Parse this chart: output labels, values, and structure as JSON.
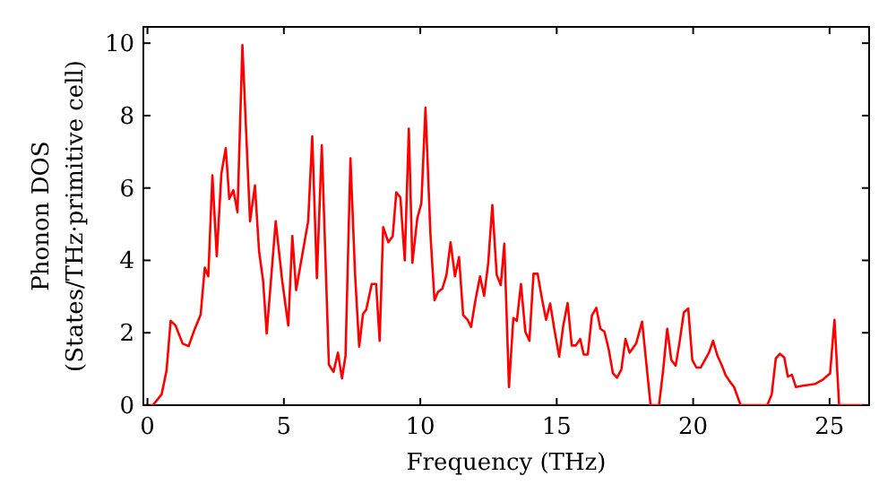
{
  "chart_data": {
    "type": "line",
    "xlabel": "Frequency (THz)",
    "ylabel": "Phonon DOS\n(States/THz·primitive cell)",
    "xlim": [
      -0.15,
      26.45
    ],
    "ylim": [
      0,
      10.45
    ],
    "xticks": [
      0,
      5,
      10,
      15,
      20,
      25
    ],
    "yticks": [
      0,
      2,
      4,
      6,
      8,
      10
    ],
    "grid": false,
    "marker": "none",
    "line_style": "solid",
    "series": [
      {
        "color": "#ff0000",
        "x": [
          -0.15,
          0.2,
          0.52,
          0.7,
          0.85,
          1.03,
          1.29,
          1.51,
          1.73,
          1.95,
          2.1,
          2.23,
          2.38,
          2.54,
          2.71,
          2.87,
          3.0,
          3.15,
          3.3,
          3.48,
          3.76,
          3.94,
          4.09,
          4.24,
          4.37,
          4.7,
          4.94,
          5.16,
          5.31,
          5.45,
          5.66,
          5.89,
          6.04,
          6.21,
          6.39,
          6.65,
          6.82,
          6.98,
          7.13,
          7.26,
          7.44,
          7.61,
          7.76,
          7.9,
          8.02,
          8.22,
          8.38,
          8.51,
          8.64,
          8.83,
          8.99,
          9.12,
          9.27,
          9.43,
          9.58,
          9.71,
          9.89,
          10.04,
          10.19,
          10.37,
          10.52,
          10.65,
          10.81,
          10.96,
          11.11,
          11.27,
          11.42,
          11.57,
          11.73,
          11.86,
          12.03,
          12.19,
          12.34,
          12.49,
          12.64,
          12.8,
          12.95,
          13.08,
          13.25,
          13.41,
          13.54,
          13.69,
          13.85,
          14.0,
          14.15,
          14.3,
          14.46,
          14.61,
          14.76,
          14.91,
          15.09,
          15.24,
          15.4,
          15.55,
          15.7,
          15.86,
          15.99,
          16.14,
          16.29,
          16.45,
          16.6,
          16.75,
          16.91,
          17.06,
          17.21,
          17.37,
          17.52,
          17.67,
          17.91,
          18.13,
          18.29,
          18.44,
          18.75,
          18.9,
          19.05,
          19.2,
          19.36,
          19.51,
          19.66,
          19.82,
          19.97,
          20.12,
          20.28,
          20.43,
          20.58,
          20.73,
          20.89,
          21.04,
          21.19,
          21.34,
          21.5,
          21.74,
          22.72,
          22.88,
          23.03,
          23.18,
          23.34,
          23.47,
          23.62,
          23.77,
          24.03,
          24.48,
          24.76,
          25.02,
          25.18,
          25.35,
          26.45
        ],
        "values": [
          0,
          0,
          0.3,
          0.96,
          2.33,
          2.2,
          1.7,
          1.63,
          2.1,
          2.5,
          3.8,
          3.56,
          6.35,
          4.12,
          6.4,
          7.1,
          5.7,
          5.94,
          5.33,
          9.95,
          5.08,
          6.07,
          4.26,
          3.43,
          1.98,
          5.08,
          3.43,
          2.2,
          4.67,
          3.18,
          4.09,
          5.08,
          7.43,
          3.51,
          7.18,
          1.12,
          0.92,
          1.45,
          0.74,
          1.37,
          6.82,
          3.6,
          1.62,
          2.52,
          2.64,
          3.35,
          3.35,
          1.78,
          4.92,
          4.5,
          4.67,
          5.88,
          5.74,
          4.0,
          7.64,
          3.93,
          5.16,
          5.58,
          8.22,
          4.75,
          2.9,
          3.13,
          3.22,
          3.6,
          4.5,
          3.56,
          4.09,
          2.49,
          2.36,
          2.16,
          2.94,
          3.56,
          3.02,
          3.93,
          5.53,
          3.6,
          3.32,
          4.46,
          0.5,
          2.41,
          2.33,
          3.35,
          2.03,
          1.78,
          3.63,
          3.63,
          2.94,
          2.36,
          2.81,
          2.11,
          1.34,
          2.2,
          2.82,
          1.65,
          1.65,
          1.83,
          1.4,
          1.4,
          2.48,
          2.69,
          2.11,
          2.03,
          1.53,
          0.88,
          0.76,
          0.99,
          1.83,
          1.45,
          1.7,
          2.31,
          1.12,
          0,
          0,
          0.96,
          2.11,
          1.25,
          1.09,
          1.78,
          2.57,
          2.67,
          1.25,
          1.04,
          1.04,
          1.25,
          1.45,
          1.78,
          1.37,
          1.12,
          0.83,
          0.66,
          0.5,
          0,
          0,
          0.3,
          1.29,
          1.42,
          1.32,
          0.79,
          0.84,
          0.5,
          0.54,
          0.59,
          0.71,
          0.88,
          2.36,
          0,
          0
        ]
      }
    ]
  }
}
